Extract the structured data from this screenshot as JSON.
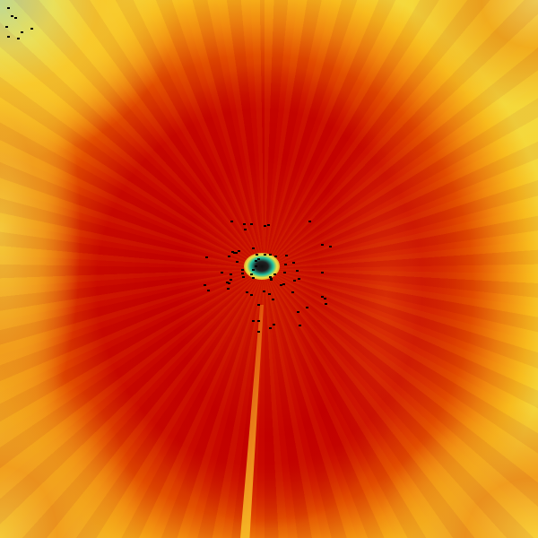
{
  "image": {
    "kind": "radar-scan",
    "palette": {
      "dominant": "#c00000",
      "mid": "#f08a10",
      "outer": "#f4e040",
      "corner": "#b8e0a0",
      "center": "#20c0a0",
      "no_data": "#000000"
    }
  }
}
